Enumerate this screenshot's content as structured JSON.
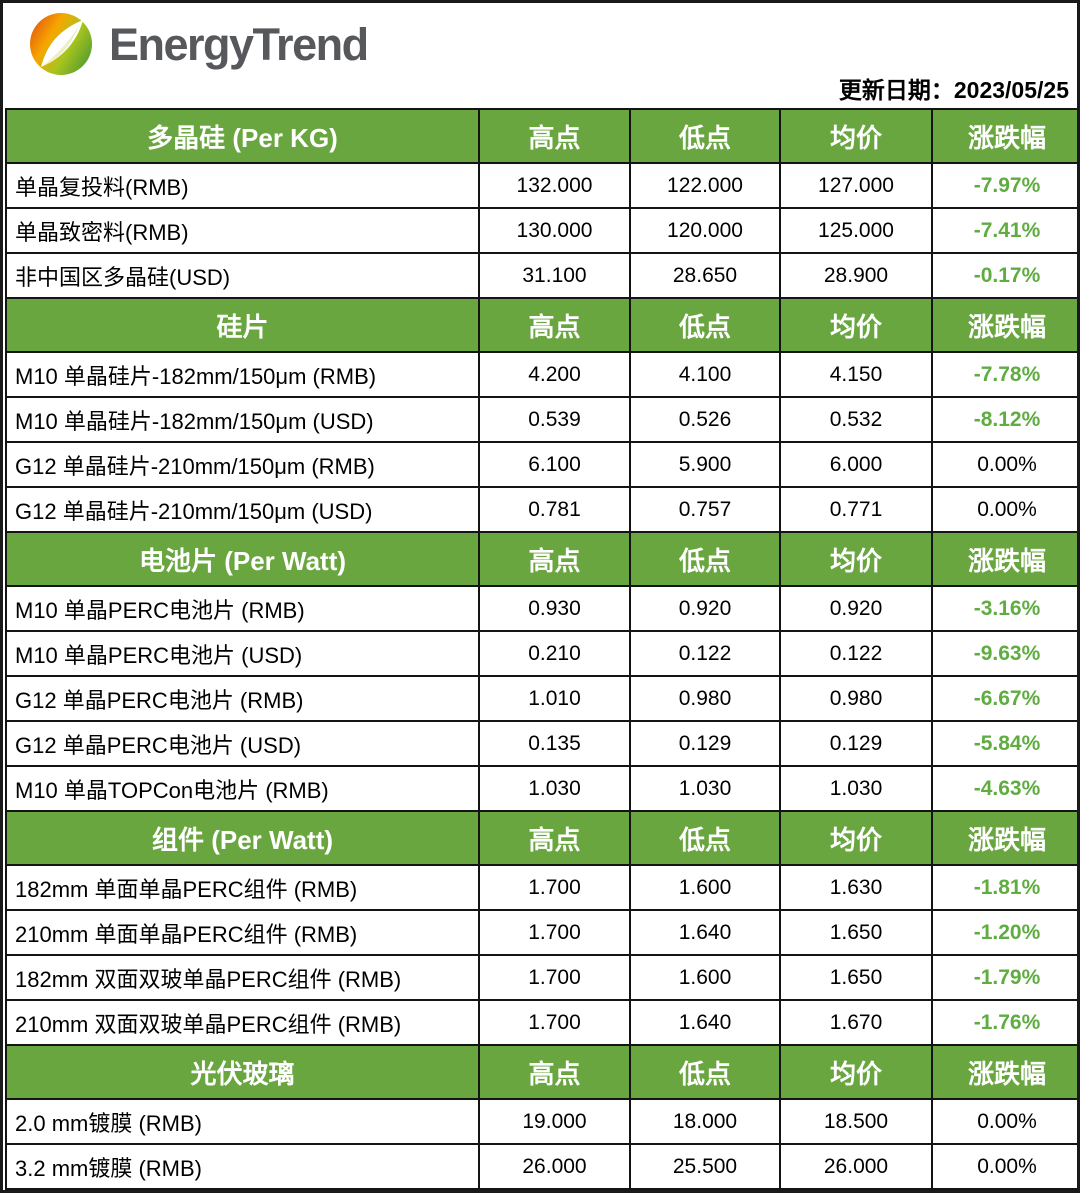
{
  "brand": {
    "name": "EnergyTrend"
  },
  "update": {
    "label": "更新日期：",
    "date": "2023/05/25"
  },
  "columns": [
    "高点",
    "低点",
    "均价",
    "涨跌幅"
  ],
  "colors": {
    "header_green": "#69a63f",
    "change_green": "#5fad41",
    "border_black": "#141414",
    "brand_gray": "#57585b",
    "logo_orange": "#e8650d",
    "logo_yellow": "#f7a600",
    "logo_green": "#5fa132"
  },
  "sections": [
    {
      "title": "多晶硅 (Per KG)",
      "rows": [
        {
          "label": "单晶复投料(RMB)",
          "high": "132.000",
          "low": "122.000",
          "avg": "127.000",
          "change": "-7.97%",
          "change_dir": "down"
        },
        {
          "label": "单晶致密料(RMB)",
          "high": "130.000",
          "low": "120.000",
          "avg": "125.000",
          "change": "-7.41%",
          "change_dir": "down"
        },
        {
          "label": "非中国区多晶硅(USD)",
          "high": "31.100",
          "low": "28.650",
          "avg": "28.900",
          "change": "-0.17%",
          "change_dir": "down"
        }
      ]
    },
    {
      "title": "硅片",
      "rows": [
        {
          "label": "M10 单晶硅片-182mm/150μm (RMB)",
          "high": "4.200",
          "low": "4.100",
          "avg": "4.150",
          "change": "-7.78%",
          "change_dir": "down"
        },
        {
          "label": "M10 单晶硅片-182mm/150μm (USD)",
          "high": "0.539",
          "low": "0.526",
          "avg": "0.532",
          "change": "-8.12%",
          "change_dir": "down"
        },
        {
          "label": "G12 单晶硅片-210mm/150μm  (RMB)",
          "high": "6.100",
          "low": "5.900",
          "avg": "6.000",
          "change": "0.00%",
          "change_dir": "flat"
        },
        {
          "label": "G12 单晶硅片-210mm/150μm  (USD)",
          "high": "0.781",
          "low": "0.757",
          "avg": "0.771",
          "change": "0.00%",
          "change_dir": "flat"
        }
      ]
    },
    {
      "title": "电池片 (Per Watt)",
      "rows": [
        {
          "label": "M10 单晶PERC电池片 (RMB)",
          "high": "0.930",
          "low": "0.920",
          "avg": "0.920",
          "change": "-3.16%",
          "change_dir": "down"
        },
        {
          "label": "M10 单晶PERC电池片 (USD)",
          "high": "0.210",
          "low": "0.122",
          "avg": "0.122",
          "change": "-9.63%",
          "change_dir": "down"
        },
        {
          "label": "G12 单晶PERC电池片 (RMB)",
          "high": "1.010",
          "low": "0.980",
          "avg": "0.980",
          "change": "-6.67%",
          "change_dir": "down"
        },
        {
          "label": "G12 单晶PERC电池片 (USD)",
          "high": "0.135",
          "low": "0.129",
          "avg": "0.129",
          "change": "-5.84%",
          "change_dir": "down"
        },
        {
          "label": "M10 单晶TOPCon电池片 (RMB)",
          "high": "1.030",
          "low": "1.030",
          "avg": "1.030",
          "change": "-4.63%",
          "change_dir": "down"
        }
      ]
    },
    {
      "title": "组件 (Per Watt)",
      "rows": [
        {
          "label": "182mm 单面单晶PERC组件 (RMB)",
          "high": "1.700",
          "low": "1.600",
          "avg": "1.630",
          "change": "-1.81%",
          "change_dir": "down"
        },
        {
          "label": "210mm 单面单晶PERC组件 (RMB)",
          "high": "1.700",
          "low": "1.640",
          "avg": "1.650",
          "change": "-1.20%",
          "change_dir": "down"
        },
        {
          "label": "182mm 双面双玻单晶PERC组件 (RMB)",
          "high": "1.700",
          "low": "1.600",
          "avg": "1.650",
          "change": "-1.79%",
          "change_dir": "down"
        },
        {
          "label": "210mm 双面双玻单晶PERC组件 (RMB)",
          "high": "1.700",
          "low": "1.640",
          "avg": "1.670",
          "change": "-1.76%",
          "change_dir": "down"
        }
      ]
    },
    {
      "title": "光伏玻璃",
      "rows": [
        {
          "label": "2.0 mm镀膜 (RMB)",
          "high": "19.000",
          "low": "18.000",
          "avg": "18.500",
          "change": "0.00%",
          "change_dir": "flat"
        },
        {
          "label": "3.2 mm镀膜 (RMB)",
          "high": "26.000",
          "low": "25.500",
          "avg": "26.000",
          "change": "0.00%",
          "change_dir": "flat"
        }
      ]
    }
  ]
}
